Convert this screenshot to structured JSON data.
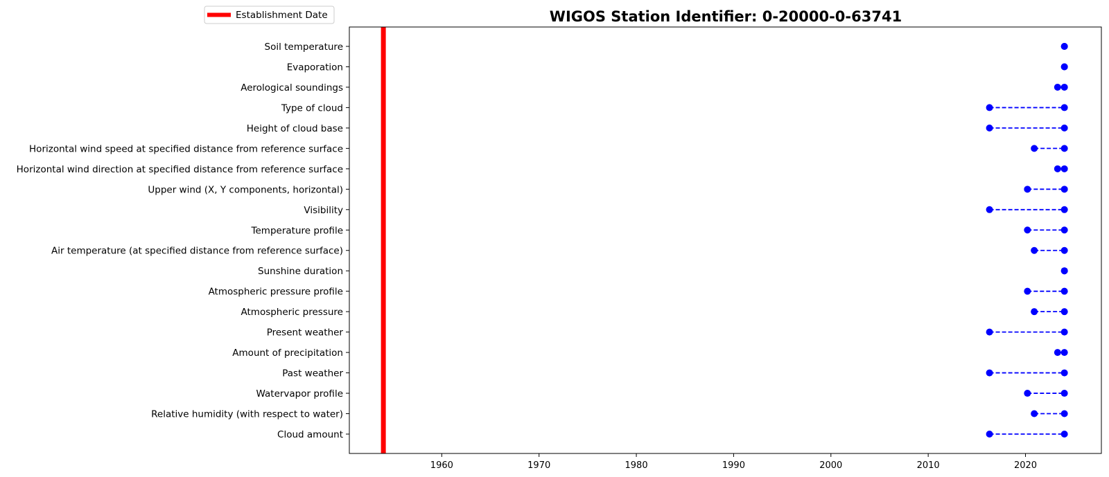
{
  "chart_data": {
    "type": "timeline",
    "title": "WIGOS Station Identifier: 0-20000-0-63741",
    "xlabel": "",
    "ylabel": "",
    "xlim": [
      1950.5,
      2027.8
    ],
    "x_ticks": [
      1960,
      1970,
      1980,
      1990,
      2000,
      2010,
      2020
    ],
    "establishment_date": 1954.0,
    "legend": {
      "entries": [
        "Establishment Date"
      ],
      "placement": "top-left, outside plot area"
    },
    "grid": false,
    "colors": {
      "establishment_line": "#ff0000",
      "series": "#0000ff"
    },
    "categories": [
      "Cloud amount",
      "Relative humidity (with respect to water)",
      "Watervapor profile",
      "Past weather",
      "Amount of precipitation",
      "Present weather",
      "Atmospheric pressure",
      "Atmospheric pressure profile",
      "Sunshine duration",
      "Air temperature (at specified distance from reference surface)",
      "Temperature profile",
      "Visibility",
      "Upper wind (X, Y components, horizontal)",
      "Horizontal wind direction at specified distance from reference surface",
      "Horizontal wind speed at specified distance from reference surface",
      "Height of cloud base",
      "Type of cloud",
      "Aerological soundings",
      "Evaporation",
      "Soil temperature"
    ],
    "series": [
      {
        "start": 2016.3,
        "end": 2024.0
      },
      {
        "start": 2020.9,
        "end": 2024.0
      },
      {
        "start": 2020.2,
        "end": 2024.0
      },
      {
        "start": 2016.3,
        "end": 2024.0
      },
      {
        "start": 2023.3,
        "end": 2024.0
      },
      {
        "start": 2016.3,
        "end": 2024.0
      },
      {
        "start": 2020.9,
        "end": 2024.0
      },
      {
        "start": 2020.2,
        "end": 2024.0
      },
      {
        "start": 2024.0,
        "end": 2024.0
      },
      {
        "start": 2020.9,
        "end": 2024.0
      },
      {
        "start": 2020.2,
        "end": 2024.0
      },
      {
        "start": 2016.3,
        "end": 2024.0
      },
      {
        "start": 2020.2,
        "end": 2024.0
      },
      {
        "start": 2023.3,
        "end": 2024.0
      },
      {
        "start": 2020.9,
        "end": 2024.0
      },
      {
        "start": 2016.3,
        "end": 2024.0
      },
      {
        "start": 2016.3,
        "end": 2024.0
      },
      {
        "start": 2023.3,
        "end": 2024.0
      },
      {
        "start": 2024.0,
        "end": 2024.0
      },
      {
        "start": 2024.0,
        "end": 2024.0
      }
    ]
  }
}
